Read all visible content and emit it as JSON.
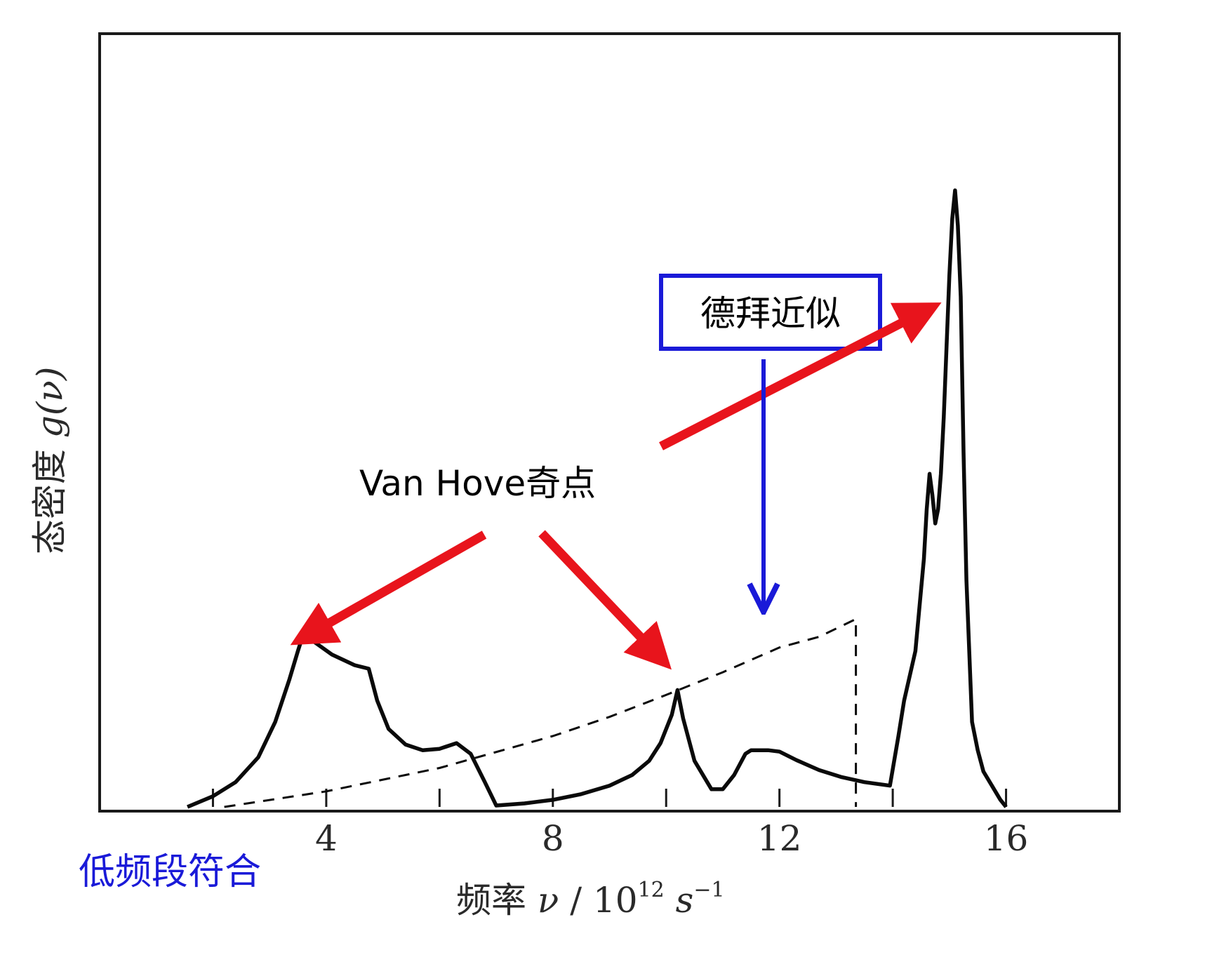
{
  "chart_data": {
    "type": "line",
    "title": "",
    "xlabel": {
      "text": "频率 ",
      "symbol": "ν",
      "unit": " / 10",
      "exponent": "12",
      "unit_tail": " s",
      "unit_exp": "−1"
    },
    "ylabel": {
      "text": "态密度 ",
      "symbol": "g(ν)"
    },
    "xlim": [
      0,
      18
    ],
    "ylim": [
      0,
      1
    ],
    "x_ticks": [
      4,
      8,
      12,
      16
    ],
    "x_minor_ticks": [
      2,
      4,
      6,
      8,
      10,
      12,
      14,
      16
    ],
    "grid": false,
    "legend": "none",
    "series": [
      {
        "style": "solid",
        "x": [
          1.55,
          2.0,
          2.4,
          2.8,
          3.1,
          3.35,
          3.5,
          3.6,
          3.75,
          4.1,
          4.5,
          4.75,
          4.9,
          5.1,
          5.4,
          5.7,
          6.0,
          6.3,
          6.55,
          6.8,
          7.0,
          7.5,
          8.0,
          8.5,
          9.0,
          9.4,
          9.7,
          9.9,
          10.1,
          10.2,
          10.3,
          10.5,
          10.8,
          11.0,
          11.2,
          11.4,
          11.5,
          11.6,
          11.8,
          12.0,
          12.3,
          12.7,
          13.1,
          13.5,
          13.95,
          14.1,
          14.2,
          14.4,
          14.55,
          14.6,
          14.65,
          14.7,
          14.75,
          14.8,
          14.85,
          14.9,
          15.0,
          15.05,
          15.1,
          15.15,
          15.2,
          15.25,
          15.3,
          15.4,
          15.5,
          15.6,
          15.75,
          15.9,
          16.0
        ],
        "y": [
          0.0,
          0.015,
          0.035,
          0.07,
          0.12,
          0.18,
          0.22,
          0.245,
          0.235,
          0.215,
          0.2,
          0.195,
          0.15,
          0.11,
          0.088,
          0.08,
          0.082,
          0.09,
          0.075,
          0.035,
          0.002,
          0.005,
          0.01,
          0.018,
          0.03,
          0.045,
          0.065,
          0.09,
          0.13,
          0.165,
          0.125,
          0.065,
          0.025,
          0.025,
          0.045,
          0.075,
          0.08,
          0.08,
          0.08,
          0.078,
          0.066,
          0.052,
          0.042,
          0.035,
          0.03,
          0.1,
          0.15,
          0.22,
          0.35,
          0.42,
          0.47,
          0.44,
          0.4,
          0.42,
          0.47,
          0.55,
          0.75,
          0.83,
          0.87,
          0.82,
          0.72,
          0.5,
          0.32,
          0.12,
          0.08,
          0.05,
          0.03,
          0.01,
          0.0
        ]
      },
      {
        "style": "dashed",
        "x": [
          2.2,
          4.0,
          6.0,
          8.0,
          9.0,
          10.0,
          11.0,
          12.0,
          12.7,
          13.35,
          13.35
        ],
        "y": [
          0.0,
          0.022,
          0.055,
          0.1,
          0.127,
          0.158,
          0.19,
          0.225,
          0.24,
          0.265,
          0.0
        ]
      }
    ],
    "annotations": {
      "van_hove": "Van Hove奇点",
      "debye": "德拜近似",
      "low_freq": "低频段符合"
    },
    "colors": {
      "axis": "#1a1a1a",
      "curve": "#0a0a0a",
      "arrow_red": "#e8141c",
      "arrow_blue": "#1a1ad8",
      "text_blue": "#1a1ad8"
    }
  }
}
